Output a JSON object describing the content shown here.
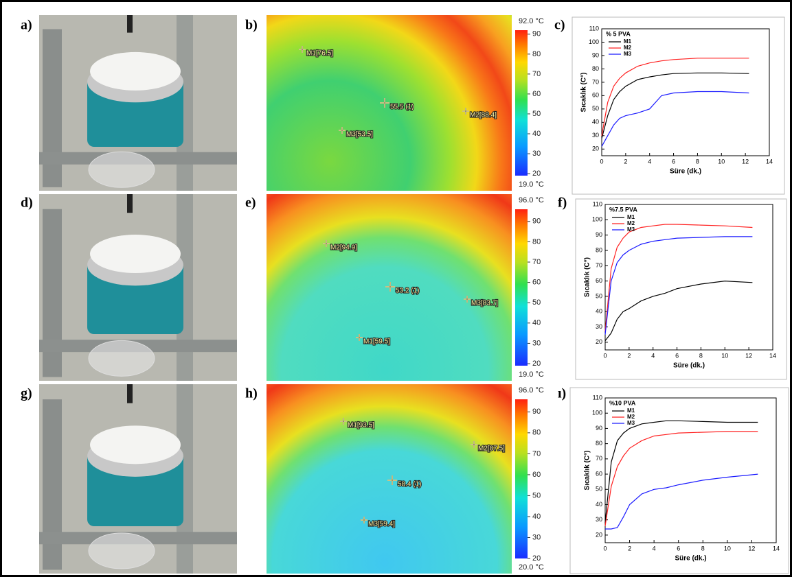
{
  "panel_labels": [
    "a)",
    "b)",
    "c)",
    "d)",
    "e)",
    "f)",
    "g)",
    "h)",
    "ı)"
  ],
  "thermal_images": [
    {
      "scale_max": {
        "value": 92,
        "label": "92.0 °C"
      },
      "scale_min": {
        "value": 19,
        "label": "19.0 °C"
      },
      "ticks": [
        20,
        30,
        40,
        50,
        60,
        70,
        80,
        90
      ],
      "markers": [
        "M1[76.5]",
        "55.5 (1)",
        "M2[88.4]",
        "M3[53.5]"
      ]
    },
    {
      "scale_max": {
        "value": 96,
        "label": "96.0 °C"
      },
      "scale_min": {
        "value": 19,
        "label": "19.0 °C"
      },
      "ticks": [
        20,
        30,
        40,
        50,
        60,
        70,
        80,
        90
      ],
      "markers": [
        "M2[94.9]",
        "53.2 (1)",
        "M3[83.7]",
        "M1[59.5]"
      ]
    },
    {
      "scale_max": {
        "value": 96,
        "label": "96.0 °C"
      },
      "scale_min": {
        "value": 20,
        "label": "20.0 °C"
      },
      "ticks": [
        20,
        30,
        40,
        50,
        60,
        70,
        80,
        90
      ],
      "markers": [
        "M1[93.5]",
        "58.4 (1)",
        "M2[87.5]",
        "M3[59.4]"
      ]
    }
  ],
  "chart_data": [
    {
      "type": "line",
      "legend_title": "%  5 PVA",
      "legend": "upper left",
      "x_label": "Süre (dk.)",
      "y_label": "Sıcaklık (C°)",
      "xlim": [
        0,
        14
      ],
      "ylim": [
        15,
        110
      ],
      "xticks": [
        0,
        2,
        4,
        6,
        8,
        10,
        12,
        14
      ],
      "yticks": [
        20,
        30,
        40,
        50,
        60,
        70,
        80,
        90,
        100,
        110
      ],
      "x": [
        0,
        0.5,
        1,
        1.5,
        2,
        3,
        4,
        5,
        6,
        8,
        10,
        12.3
      ],
      "series": [
        {
          "name": "M1",
          "color": "#000000",
          "values": [
            28,
            45,
            57,
            63,
            67,
            72,
            74,
            75.5,
            76.5,
            77,
            77,
            76.5
          ]
        },
        {
          "name": "M2",
          "color": "#ff2020",
          "values": [
            30,
            55,
            67,
            73,
            77,
            82,
            84.5,
            86,
            87,
            88,
            88,
            88
          ]
        },
        {
          "name": "M3",
          "color": "#1a1aff",
          "values": [
            22,
            30,
            38,
            43,
            45,
            47,
            50,
            60,
            62,
            63,
            63,
            62
          ]
        }
      ]
    },
    {
      "type": "line",
      "legend_title": "%7.5 PVA",
      "legend": "upper left",
      "x_label": "Süre (dk.)",
      "y_label": "Sıcaklık (C°)",
      "xlim": [
        0,
        14
      ],
      "ylim": [
        15,
        110
      ],
      "xticks": [
        0,
        2,
        4,
        6,
        8,
        10,
        12,
        14
      ],
      "yticks": [
        20,
        30,
        40,
        50,
        60,
        70,
        80,
        90,
        100,
        110
      ],
      "x": [
        0,
        0.5,
        1,
        1.5,
        2,
        3,
        4,
        5,
        6,
        8,
        10,
        12.3
      ],
      "series": [
        {
          "name": "M1",
          "color": "#000000",
          "values": [
            21,
            26,
            35,
            40,
            42,
            47,
            50,
            52,
            55,
            58,
            60,
            59
          ]
        },
        {
          "name": "M2",
          "color": "#ff2020",
          "values": [
            27,
            68,
            82,
            88,
            92,
            95,
            96,
            97,
            97,
            96.5,
            96,
            95
          ]
        },
        {
          "name": "M3",
          "color": "#1a1aff",
          "values": [
            25,
            60,
            72,
            77,
            80,
            84,
            86,
            87,
            88,
            88.5,
            89,
            89
          ]
        }
      ]
    },
    {
      "type": "line",
      "legend_title": "%10 PVA",
      "legend": "upper left",
      "x_label": "Süre (dk.)",
      "y_label": "Sıcaklık (C°)",
      "xlim": [
        0,
        14
      ],
      "ylim": [
        15,
        110
      ],
      "xticks": [
        0,
        2,
        4,
        6,
        8,
        10,
        12,
        14
      ],
      "yticks": [
        20,
        30,
        40,
        50,
        60,
        70,
        80,
        90,
        100,
        110
      ],
      "x": [
        0,
        0.5,
        1,
        1.5,
        2,
        3,
        4,
        5,
        6,
        8,
        10,
        12.5
      ],
      "series": [
        {
          "name": "M1",
          "color": "#000000",
          "values": [
            28,
            68,
            82,
            87,
            90,
            93,
            94,
            95,
            95,
            94.5,
            94,
            94
          ]
        },
        {
          "name": "M2",
          "color": "#ff2020",
          "values": [
            26,
            52,
            65,
            72,
            77,
            82,
            85,
            86,
            87,
            87.5,
            88,
            88
          ]
        },
        {
          "name": "M3",
          "color": "#1a1aff",
          "values": [
            24,
            24,
            25,
            32,
            40,
            47,
            50,
            51,
            53,
            56,
            58,
            60
          ]
        }
      ]
    }
  ]
}
